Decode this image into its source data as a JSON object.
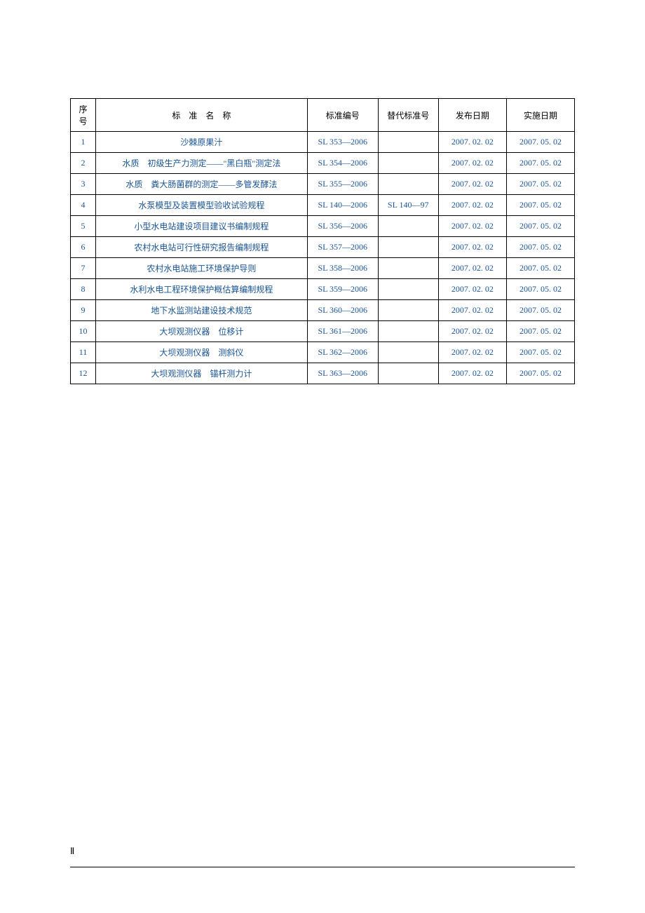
{
  "table": {
    "columns": [
      "序号",
      "标　准　名　称",
      "标准编号",
      "替代标准号",
      "发布日期",
      "实施日期"
    ],
    "column_widths": [
      "5%",
      "42%",
      "14%",
      "12%",
      "13.5%",
      "13.5%"
    ],
    "header_color": "#000000",
    "cell_color": "#1a5494",
    "border_color": "#000000",
    "background_color": "#ffffff",
    "font_size": 12,
    "rows": [
      {
        "seq": "1",
        "name": "沙棘原果汁",
        "std": "SL 353—2006",
        "rep": "",
        "pub": "2007. 02. 02",
        "imp": "2007. 05. 02"
      },
      {
        "seq": "2",
        "name": "水质　初级生产力测定——\"黑白瓶\"测定法",
        "std": "SL 354—2006",
        "rep": "",
        "pub": "2007. 02. 02",
        "imp": "2007. 05. 02"
      },
      {
        "seq": "3",
        "name": "水质　粪大肠菌群的测定——多管发酵法",
        "std": "SL 355—2006",
        "rep": "",
        "pub": "2007. 02. 02",
        "imp": "2007. 05. 02"
      },
      {
        "seq": "4",
        "name": "水泵模型及装置模型验收试验规程",
        "std": "SL 140—2006",
        "rep": "SL 140—97",
        "pub": "2007. 02. 02",
        "imp": "2007. 05. 02"
      },
      {
        "seq": "5",
        "name": "小型水电站建设项目建议书编制规程",
        "std": "SL 356—2006",
        "rep": "",
        "pub": "2007. 02. 02",
        "imp": "2007. 05. 02"
      },
      {
        "seq": "6",
        "name": "农村水电站可行性研究报告编制规程",
        "std": "SL 357—2006",
        "rep": "",
        "pub": "2007. 02. 02",
        "imp": "2007. 05. 02"
      },
      {
        "seq": "7",
        "name": "农村水电站施工环境保护导则",
        "std": "SL 358—2006",
        "rep": "",
        "pub": "2007. 02. 02",
        "imp": "2007. 05. 02"
      },
      {
        "seq": "8",
        "name": "水利水电工程环境保护概估算编制规程",
        "std": "SL 359—2006",
        "rep": "",
        "pub": "2007. 02. 02",
        "imp": "2007. 05. 02"
      },
      {
        "seq": "9",
        "name": "地下水监测站建设技术规范",
        "std": "SL 360—2006",
        "rep": "",
        "pub": "2007. 02. 02",
        "imp": "2007. 05. 02"
      },
      {
        "seq": "10",
        "name": "大坝观测仪器　位移计",
        "std": "SL 361—2006",
        "rep": "",
        "pub": "2007. 02. 02",
        "imp": "2007. 05. 02"
      },
      {
        "seq": "11",
        "name": "大坝观测仪器　测斜仪",
        "std": "SL 362—2006",
        "rep": "",
        "pub": "2007. 02. 02",
        "imp": "2007. 05. 02"
      },
      {
        "seq": "12",
        "name": "大坝观测仪器　锚杆测力计",
        "std": "SL 363—2006",
        "rep": "",
        "pub": "2007. 02. 02",
        "imp": "2007. 05. 02"
      }
    ]
  },
  "page_number": "Ⅱ"
}
